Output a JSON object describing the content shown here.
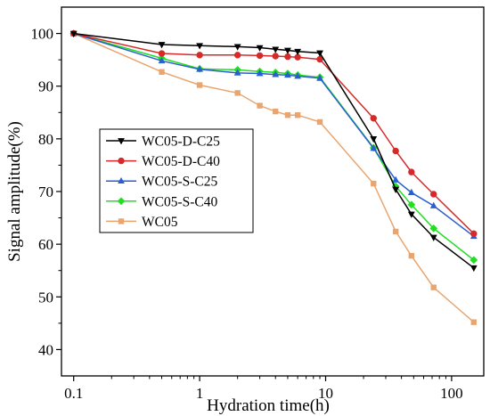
{
  "chart_data": {
    "type": "line",
    "title": "",
    "xlabel": "Hydration time(h)",
    "ylabel": "Signal amplitude(%)",
    "xscale": "log",
    "xlim": [
      0.08,
      180
    ],
    "ylim": [
      35,
      105
    ],
    "xticks": [
      0.1,
      1,
      10,
      100
    ],
    "xtick_labels": [
      "0.1",
      "1",
      "10",
      "100"
    ],
    "yticks": [
      40,
      50,
      60,
      70,
      80,
      90,
      100
    ],
    "ytick_labels": [
      "40",
      "50",
      "60",
      "70",
      "80",
      "90",
      "100"
    ],
    "grid": false,
    "legend_position": "middle-left",
    "series": [
      {
        "name": "WC05-D-C25",
        "color": "#000000",
        "marker": "triangle-down",
        "x": [
          0.1,
          0.5,
          1,
          2,
          3,
          4,
          5,
          6,
          9,
          24,
          36,
          48,
          72,
          150
        ],
        "y": [
          100,
          97.9,
          97.7,
          97.5,
          97.3,
          97.0,
          96.8,
          96.6,
          96.3,
          80.0,
          70.4,
          65.7,
          61.3,
          55.5
        ]
      },
      {
        "name": "WC05-D-C40",
        "color": "#d62a2a",
        "marker": "circle",
        "x": [
          0.1,
          0.5,
          1,
          2,
          3,
          4,
          5,
          6,
          9,
          24,
          36,
          48,
          72,
          150
        ],
        "y": [
          100,
          96.2,
          95.9,
          95.9,
          95.8,
          95.7,
          95.6,
          95.5,
          95.1,
          83.9,
          77.7,
          73.7,
          69.5,
          62.0
        ]
      },
      {
        "name": "WC05-S-C25",
        "color": "#2a5fcf",
        "marker": "triangle-up",
        "x": [
          0.1,
          0.5,
          1,
          2,
          3,
          4,
          5,
          6,
          9,
          24,
          36,
          48,
          72,
          150
        ],
        "y": [
          100,
          94.8,
          93.2,
          92.5,
          92.4,
          92.2,
          92.1,
          91.9,
          91.5,
          78.2,
          72.2,
          69.8,
          67.3,
          61.5
        ]
      },
      {
        "name": "WC05-S-C40",
        "color": "#22dd22",
        "marker": "diamond",
        "x": [
          0.1,
          0.5,
          1,
          2,
          3,
          4,
          5,
          6,
          9,
          24,
          36,
          48,
          72,
          150
        ],
        "y": [
          100,
          95.3,
          93.3,
          93.1,
          92.8,
          92.6,
          92.4,
          92.1,
          91.7,
          78.3,
          71.0,
          67.5,
          63.0,
          57.0
        ]
      },
      {
        "name": "WC05",
        "color": "#e9a56f",
        "marker": "square",
        "x": [
          0.1,
          0.5,
          1,
          2,
          3,
          4,
          5,
          6,
          9,
          24,
          36,
          48,
          72,
          150
        ],
        "y": [
          100,
          92.7,
          90.2,
          88.7,
          86.3,
          85.2,
          84.5,
          84.5,
          83.2,
          71.5,
          62.4,
          57.8,
          51.8,
          45.2
        ]
      }
    ]
  }
}
